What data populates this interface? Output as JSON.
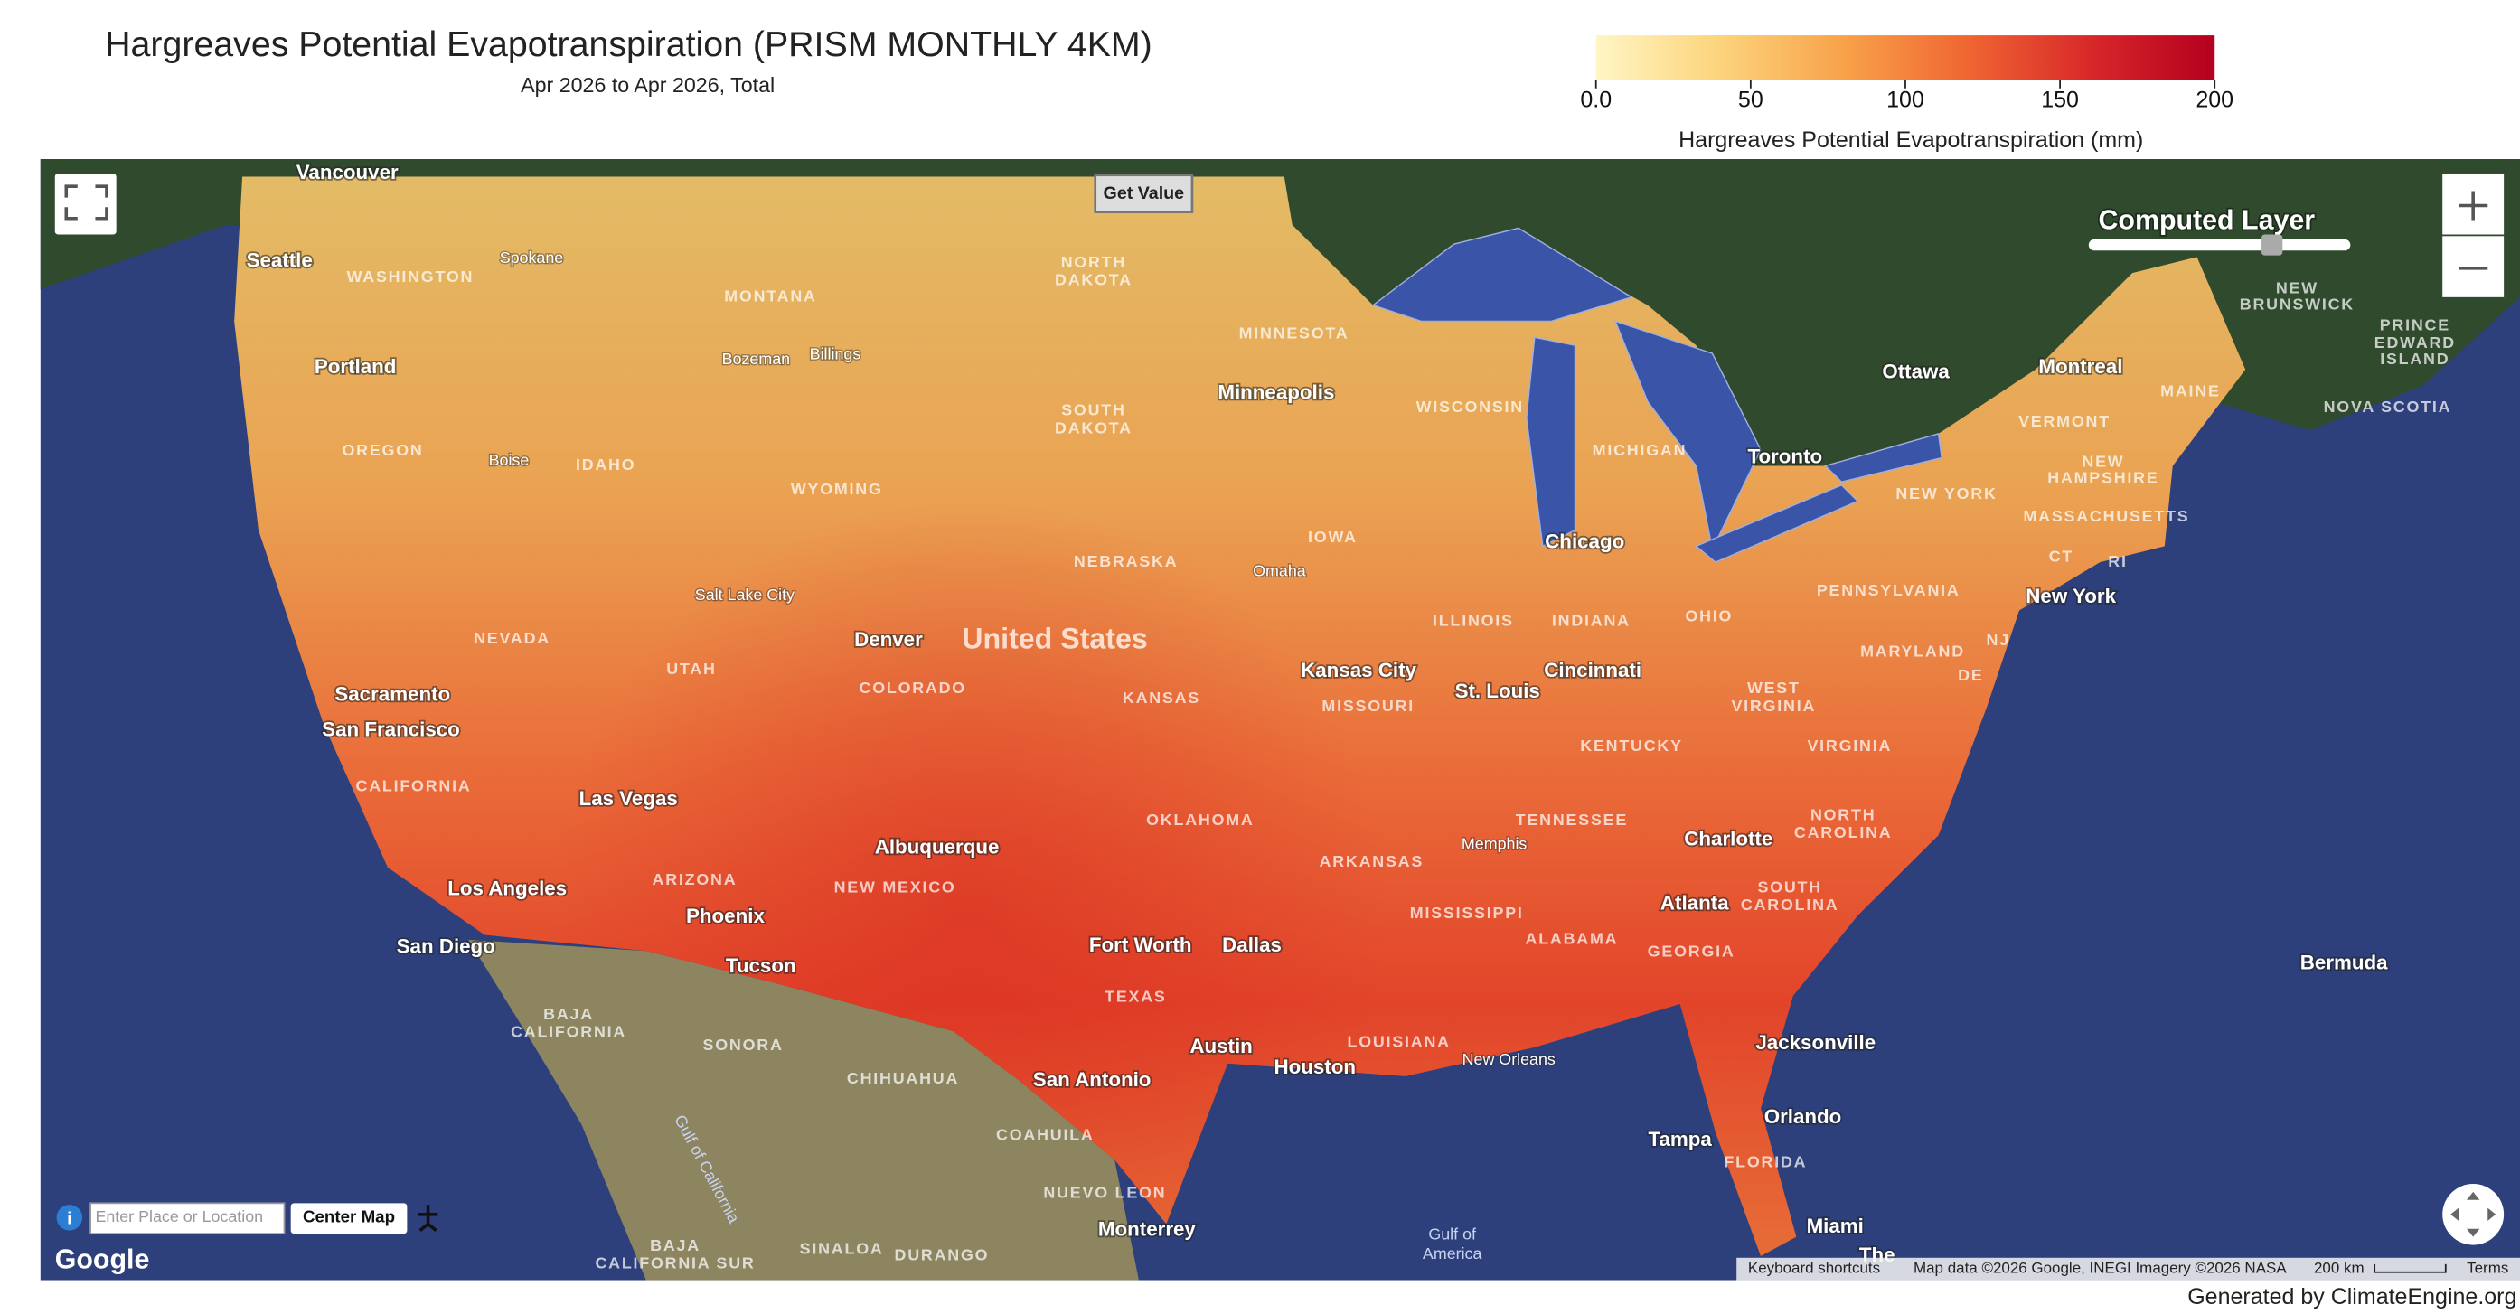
{
  "header": {
    "title": "Hargreaves Potential Evapotranspiration (PRISM MONTHLY 4KM)",
    "subtitle": "Apr 2026 to Apr 2026, Total"
  },
  "colorbar": {
    "ticks": [
      {
        "value": 0,
        "label": "0.0"
      },
      50,
      100,
      150,
      200
    ],
    "label": "Hargreaves Potential Evapotranspiration (mm)",
    "colors": [
      "#fff6c4",
      "#fcd47c",
      "#f8a24a",
      "#f06632",
      "#d8282a",
      "#b4001e"
    ]
  },
  "controls": {
    "get_value": "Get Value",
    "layer_title": "Computed Layer",
    "search_placeholder": "Enter Place or Location",
    "center_map": "Center Map",
    "keyboard": "Keyboard shortcuts",
    "map_data": "Map data ©2026 Google, INEGI Imagery ©2026 NASA",
    "scale": "200 km",
    "terms": "Terms",
    "logo": "Google"
  },
  "map": {
    "labels": [
      "Vancouver",
      "Seattle",
      "Spokane",
      "WASHINGTON",
      "MONTANA",
      "NORTH",
      "DAKOTA",
      "MINNESOTA",
      "Bozeman",
      "Billings",
      "Portland",
      "Minneapolis",
      "WISCONSIN",
      "SOUTH",
      "DAKOTA",
      "Ottawa",
      "Montreal",
      "MAINE",
      "NEW",
      "BRUNSWICK",
      "PRINCE",
      "EDWARD",
      "ISLAND",
      "NOVA SCOTIA",
      "VERMONT",
      "OREGON",
      "Boise",
      "IDAHO",
      "WYOMING",
      "MICHIGAN",
      "Toronto",
      "NEW",
      "HAMPSHIRE",
      "NEW YORK",
      "MASSACHUSETTS",
      "IOWA",
      "Chicago",
      "NEBRASKA",
      "Omaha",
      "CT",
      "RI",
      "PENNSYLVANIA",
      "New York",
      "Salt Lake City",
      "NEVADA",
      "ILLINOIS",
      "INDIANA",
      "OHIO",
      "Denver",
      "United States",
      "UTAH",
      "Kansas City",
      "Cincinnati",
      "MARYLAND",
      "NJ",
      "DE",
      "COLORADO",
      "KANSAS",
      "St. Louis",
      "MISSOURI",
      "WEST",
      "VIRGINIA",
      "Sacramento",
      "San Francisco",
      "KENTUCKY",
      "VIRGINIA",
      "CALIFORNIA",
      "Las Vegas",
      "TENNESSEE",
      "OKLAHOMA",
      "NORTH",
      "CAROLINA",
      "Memphis",
      "Albuquerque",
      "Charlotte",
      "ARKANSAS",
      "ARIZONA",
      "NEW MEXICO",
      "Los Angeles",
      "SOUTH",
      "CAROLINA",
      "Atlanta",
      "MISSISSIPPI",
      "Phoenix",
      "ALABAMA",
      "Fort Worth",
      "Dallas",
      "GEORGIA",
      "San Diego",
      "Tucson",
      "Bermuda",
      "TEXAS",
      "BAJA",
      "CALIFORNIA",
      "LOUISIANA",
      "SONORA",
      "Austin",
      "Jacksonville",
      "New Orleans",
      "Houston",
      "San Antonio",
      "CHIHUAHUA",
      "Orlando",
      "COAHUILA",
      "Tampa",
      "FLORIDA",
      "Gulf of California",
      "NUEVO LEON",
      "Miami",
      "Monterrey",
      "Gulf of",
      "America",
      "SINALOA",
      "DURANGO",
      "BAJA",
      "CALIFORNIA SUR",
      "The"
    ]
  },
  "footer": "Generated by ClimateEngine.org"
}
